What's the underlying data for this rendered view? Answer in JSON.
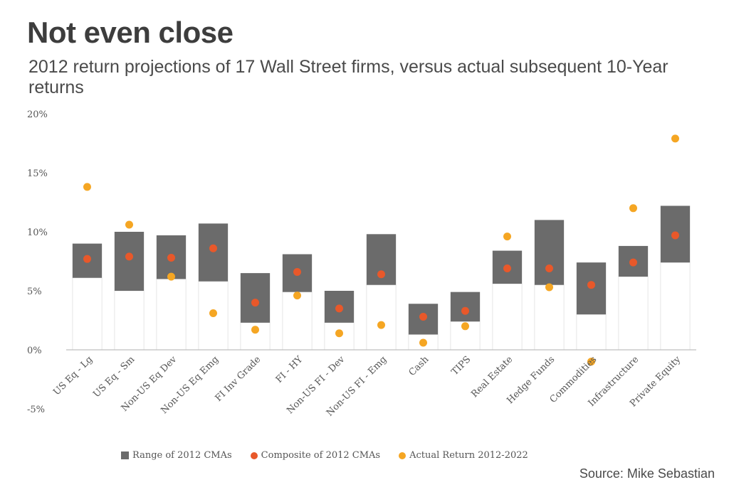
{
  "title": "Not even close",
  "subtitle": "2012 return projections of 17 Wall Street firms, versus actual subsequent 10-Year returns",
  "source": "Source: Mike Sebastian",
  "colors": {
    "range": "#6b6b6b",
    "composite": "#e8582a",
    "actual": "#f5a623",
    "axis": "#bfbfbf",
    "bar_edge": "#e6e6e6"
  },
  "legend": {
    "range_label": "Range of 2012 CMAs",
    "composite_label": "Composite of 2012 CMAs",
    "actual_label": "Actual Return 2012-2022"
  },
  "chart_data": {
    "type": "bar",
    "ylim": [
      -5,
      20
    ],
    "yticks": [
      "-5%",
      "0%",
      "5%",
      "10%",
      "15%",
      "20%"
    ],
    "ytick_values": [
      -5,
      0,
      5,
      10,
      15,
      20
    ],
    "legend_position": "bottom",
    "grid": false,
    "categories": [
      "US Eq - Lg",
      "US Eq - Sm",
      "Non-US Eq Dev",
      "Non-US Eq Emg",
      "FI Inv Grade",
      "FI - HY",
      "Non-US FI - Dev",
      "Non-US FI - Emg",
      "Cash",
      "TIPS",
      "Real Estate",
      "Hedge Funds",
      "Commodities",
      "Infrastructure",
      "Private Equity"
    ],
    "series": [
      {
        "name": "Range of 2012 CMAs",
        "low": [
          6.1,
          5.0,
          6.0,
          5.8,
          2.3,
          4.9,
          2.3,
          5.5,
          1.3,
          2.4,
          5.6,
          5.5,
          3.0,
          6.2,
          7.4
        ],
        "high": [
          9.0,
          10.0,
          9.7,
          10.7,
          6.5,
          8.1,
          5.0,
          9.8,
          3.9,
          4.9,
          8.4,
          11.0,
          7.4,
          8.8,
          12.2
        ]
      },
      {
        "name": "Composite of 2012 CMAs",
        "values": [
          7.7,
          7.9,
          7.8,
          8.6,
          4.0,
          6.6,
          3.5,
          6.4,
          2.8,
          3.3,
          6.9,
          6.9,
          5.5,
          7.4,
          9.7
        ]
      },
      {
        "name": "Actual Return 2012-2022",
        "values": [
          13.8,
          10.6,
          6.2,
          3.1,
          1.7,
          4.6,
          1.4,
          2.1,
          0.6,
          2.0,
          9.6,
          5.3,
          -1.0,
          12.0,
          17.9
        ]
      }
    ]
  }
}
